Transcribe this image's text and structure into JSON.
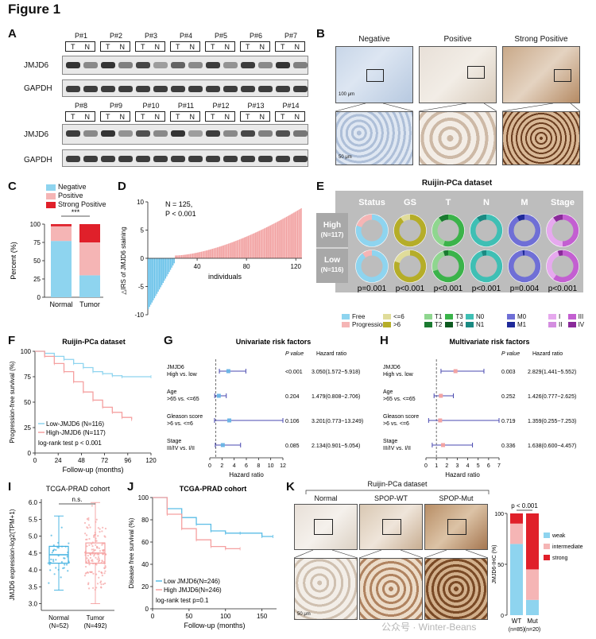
{
  "figure_title": "Figure 1",
  "panels": {
    "A": "A",
    "B": "B",
    "C": "C",
    "D": "D",
    "E": "E",
    "F": "F",
    "G": "G",
    "H": "H",
    "I": "I",
    "J": "J",
    "K": "K"
  },
  "panelA": {
    "lanes_top": [
      "P#1",
      "P#2",
      "P#3",
      "P#4",
      "P#5",
      "P#6",
      "P#7"
    ],
    "lanes_bottom": [
      "P#8",
      "P#9",
      "P#10",
      "P#11",
      "P#12",
      "P#13",
      "P#14"
    ],
    "t": "T",
    "n": "N",
    "jmjd6": "JMJD6",
    "gapdh": "GAPDH"
  },
  "panelB": {
    "titles": [
      "Negative",
      "Positive",
      "Strong Positive"
    ],
    "scale1": "100 μm",
    "scale2": "50 μm"
  },
  "panelC": {
    "chart_data": {
      "type": "bar",
      "stacked": true,
      "categories": [
        "Normal",
        "Tumor"
      ],
      "series": [
        {
          "name": "Negative",
          "values": [
            77,
            30
          ]
        },
        {
          "name": "Positive",
          "values": [
            20,
            45
          ]
        },
        {
          "name": "Strong Positive",
          "values": [
            3,
            25
          ]
        }
      ],
      "ylabel": "Percent (%)",
      "ylim": [
        0,
        100
      ],
      "yticks": [
        "0",
        "25",
        "50",
        "75",
        "100"
      ],
      "sig": "***",
      "colors": [
        "#8ed4ef",
        "#f5b5b5",
        "#e0202a"
      ]
    }
  },
  "panelD": {
    "chart_data": {
      "type": "bar",
      "xlabel": "individuals",
      "ylabel": "△IRS of JMJD6 staining",
      "n": 125,
      "xlim": [
        0,
        125
      ],
      "ylim": [
        -10,
        10
      ],
      "xticks": [
        "40",
        "80",
        "120"
      ],
      "yticks": [
        "10",
        "5",
        "0",
        "-5",
        "-10"
      ],
      "min": -9,
      "max": 9,
      "zero_cross": 22
    },
    "ann1": "N = 125,",
    "ann2": "P < 0.001"
  },
  "panelE": {
    "title": "Ruijin-PCa dataset",
    "cols": [
      "Status",
      "GS",
      "T",
      "N",
      "M",
      "Stage"
    ],
    "high": "High",
    "high_n": "(N=117)",
    "low": "Low",
    "low_n": "(N=116)",
    "pvals": [
      "p=0.001",
      "p<0.001",
      "p<0.001",
      "p<0.001",
      "p=0.004",
      "p<0.001"
    ],
    "donuts": {
      "high": [
        [
          [
            "#8ed4ef",
            0.8
          ],
          [
            "#f5b5b5",
            0.2
          ]
        ],
        [
          [
            "#b5ad28",
            0.9
          ],
          [
            "#e0dc9a",
            0.1
          ]
        ],
        [
          [
            "#3bb34a",
            0.55
          ],
          [
            "#8fd68f",
            0.35
          ],
          [
            "#1a7a30",
            0.1
          ]
        ],
        [
          [
            "#3fbfb4",
            0.9
          ],
          [
            "#1a8a82",
            0.1
          ]
        ],
        [
          [
            "#6f6fd6",
            0.92
          ],
          [
            "#1f2a9a",
            0.08
          ]
        ],
        [
          [
            "#c35fd1",
            0.5
          ],
          [
            "#e6a9ee",
            0.4
          ],
          [
            "#8a2a9a",
            0.1
          ]
        ]
      ],
      "low": [
        [
          [
            "#8ed4ef",
            0.9
          ],
          [
            "#f5b5b5",
            0.1
          ]
        ],
        [
          [
            "#b5ad28",
            0.8
          ],
          [
            "#e0dc9a",
            0.2
          ]
        ],
        [
          [
            "#3bb34a",
            0.7
          ],
          [
            "#8fd68f",
            0.25
          ],
          [
            "#1a7a30",
            0.05
          ]
        ],
        [
          [
            "#3fbfb4",
            0.95
          ],
          [
            "#1a8a82",
            0.05
          ]
        ],
        [
          [
            "#6f6fd6",
            0.98
          ],
          [
            "#1f2a9a",
            0.02
          ]
        ],
        [
          [
            "#c35fd1",
            0.6
          ],
          [
            "#e6a9ee",
            0.35
          ],
          [
            "#8a2a9a",
            0.05
          ]
        ]
      ]
    },
    "legend": [
      {
        "items": [
          [
            "#8ed4ef",
            "Free"
          ],
          [
            "#f5b5b5",
            "Progression"
          ]
        ]
      },
      {
        "items": [
          [
            "#e0dc9a",
            "<=6"
          ],
          [
            "#b5ad28",
            ">6"
          ]
        ]
      },
      {
        "items": [
          [
            "#8fd68f",
            "T1"
          ],
          [
            "#3bb34a",
            "T3"
          ],
          [
            "#1a7a30",
            "T2"
          ],
          [
            "#0d5a20",
            "T4"
          ]
        ]
      },
      {
        "items": [
          [
            "#3fbfb4",
            "N0"
          ],
          [
            "#1a8a82",
            "N1"
          ]
        ]
      },
      {
        "items": [
          [
            "#6f6fd6",
            "M0"
          ],
          [
            "#1f2a9a",
            "M1"
          ]
        ]
      },
      {
        "items": [
          [
            "#e6a9ee",
            "I"
          ],
          [
            "#c35fd1",
            "III"
          ],
          [
            "#d48ee0",
            "II"
          ],
          [
            "#8a2a9a",
            "IV"
          ]
        ]
      }
    ]
  },
  "panelF": {
    "chart_data": {
      "type": "line",
      "title": "Ruijin-PCa dataset",
      "ylabel": "Progression-free survival (%)",
      "xlabel": "Follow-up (months)",
      "xticks": [
        "0",
        "24",
        "48",
        "72",
        "96",
        "120"
      ],
      "yticks": [
        "0",
        "25",
        "50",
        "75",
        "100"
      ],
      "series": [
        {
          "name": "Low-JMJD6 (N=116)",
          "color": "#8ed4ef",
          "x": [
            0,
            10,
            20,
            30,
            40,
            50,
            60,
            70,
            80,
            90,
            120
          ],
          "y": [
            100,
            98,
            95,
            92,
            88,
            84,
            80,
            78,
            76,
            75,
            75
          ]
        },
        {
          "name": "High-JMJD6 (N=117)",
          "color": "#f5a0a0",
          "x": [
            0,
            10,
            20,
            30,
            40,
            50,
            60,
            70,
            80,
            90,
            100
          ],
          "y": [
            100,
            95,
            88,
            80,
            70,
            60,
            52,
            45,
            40,
            35,
            33
          ]
        }
      ]
    },
    "logrank": "log-rank test p < 0.001"
  },
  "panelG": {
    "title": "Univariate risk factors",
    "hdr_p": "P value",
    "hdr_hr": "Hazard ratio",
    "xlabel": "Hazard ratio",
    "xticks": [
      "0",
      "2",
      "4",
      "6",
      "8",
      "10",
      "12"
    ],
    "rows": [
      {
        "n1": "JMJD6",
        "n2": "High vs. low",
        "p": "<0.001",
        "hr": "3.050(1.572~5.918)",
        "est": 3.05,
        "lo": 1.572,
        "hi": 5.918
      },
      {
        "n1": "Age",
        "n2": ">65 vs. <=65",
        "p": "0.204",
        "hr": "1.479(0.808~2.706)",
        "est": 1.479,
        "lo": 0.808,
        "hi": 2.706
      },
      {
        "n1": "Gleason score",
        "n2": ">6 vs. <=6",
        "p": "0.106",
        "hr": "3.201(0.773~13.249)",
        "est": 3.201,
        "lo": 0.773,
        "hi": 13.249
      },
      {
        "n1": "Stage",
        "n2": "III/IV vs. I/II",
        "p": "0.085",
        "hr": "2.134(0.901~5.054)",
        "est": 2.134,
        "lo": 0.901,
        "hi": 5.054
      }
    ]
  },
  "panelH": {
    "title": "Multivariate risk factors",
    "hdr_p": "P value",
    "hdr_hr": "Hazard ratio",
    "xlabel": "Hazard ratio",
    "xticks": [
      "0",
      "1",
      "2",
      "3",
      "4",
      "5",
      "6",
      "7"
    ],
    "rows": [
      {
        "n1": "JMJD6",
        "n2": "High vs. low",
        "p": "0.003",
        "hr": "2.829(1.441~5.552)",
        "est": 2.829,
        "lo": 1.441,
        "hi": 5.552
      },
      {
        "n1": "Age",
        "n2": ">65 vs. <=65",
        "p": "0.252",
        "hr": "1.426(0.777~2.625)",
        "est": 1.426,
        "lo": 0.777,
        "hi": 2.625
      },
      {
        "n1": "Gleason score",
        "n2": ">6 vs. <=6",
        "p": "0.719",
        "hr": "1.359(0.255~7.253)",
        "est": 1.359,
        "lo": 0.255,
        "hi": 7.253
      },
      {
        "n1": "Stage",
        "n2": "III/IV vs. I/II",
        "p": "0.336",
        "hr": "1.638(0.600~4.457)",
        "est": 1.638,
        "lo": 0.6,
        "hi": 4.457
      }
    ]
  },
  "panelI": {
    "chart_data": {
      "type": "box",
      "title": "TCGA-PRAD cohort",
      "ylabel": "JMJD6 expression-log2(TPM+1)",
      "categories": [
        "Normal",
        "Tumor"
      ],
      "ns": [
        "(N=52)",
        "(N=492)"
      ],
      "yticks": [
        "3.0",
        "3.5",
        "4.0",
        "4.5",
        "5.0",
        "5.5",
        "6.0"
      ],
      "ylim": [
        2.8,
        6.1
      ],
      "boxes": [
        {
          "min": 3.4,
          "q1": 4.2,
          "med": 4.45,
          "q3": 4.7,
          "max": 5.6,
          "color": "#3fb0e0"
        },
        {
          "min": 3.0,
          "q1": 4.2,
          "med": 4.5,
          "q3": 4.8,
          "max": 6.0,
          "color": "#f5a0a0"
        }
      ],
      "sig": "n.s."
    }
  },
  "panelJ": {
    "chart_data": {
      "type": "line",
      "title": "TCGA-PRAD cohort",
      "ylabel": "Disease free survival (%)",
      "xlabel": "Follow-up (months)",
      "xticks": [
        "0",
        "50",
        "100",
        "150"
      ],
      "yticks": [
        "0",
        "20",
        "40",
        "60",
        "80",
        "100"
      ],
      "series": [
        {
          "name": "Low JMJD6(N=246)",
          "color": "#5bbde6",
          "x": [
            0,
            20,
            40,
            60,
            80,
            100,
            120,
            150,
            165
          ],
          "y": [
            100,
            90,
            82,
            76,
            70,
            68,
            68,
            65,
            65
          ]
        },
        {
          "name": "High JMJD6(N=246)",
          "color": "#f5a0a0",
          "x": [
            0,
            20,
            40,
            60,
            80,
            100,
            120
          ],
          "y": [
            100,
            85,
            72,
            62,
            56,
            54,
            54
          ]
        }
      ]
    },
    "logrank": "log-rank test p=0.1"
  },
  "panelK": {
    "title": "Ruijin-PCa dataset",
    "titles": [
      "Normal",
      "SPOP-WT",
      "SPOP-Mut"
    ],
    "scale": "50 μm",
    "chart_data": {
      "type": "bar",
      "stacked": true,
      "categories": [
        "WT",
        "Mut"
      ],
      "ns": [
        "(n=85)",
        "(n=20)"
      ],
      "series": [
        {
          "name": "weak",
          "values": [
            70,
            15
          ]
        },
        {
          "name": "intermediate",
          "values": [
            20,
            30
          ]
        },
        {
          "name": "strong",
          "values": [
            10,
            55
          ]
        }
      ],
      "colors": [
        "#8ed4ef",
        "#f5b5b5",
        "#e0202a"
      ],
      "ylabel": "JMJD6-IHC (%)",
      "yticks": [
        "0",
        "50",
        "100"
      ],
      "pval": "p < 0.001"
    },
    "watermark": "公众号 · Winter-Beans"
  }
}
